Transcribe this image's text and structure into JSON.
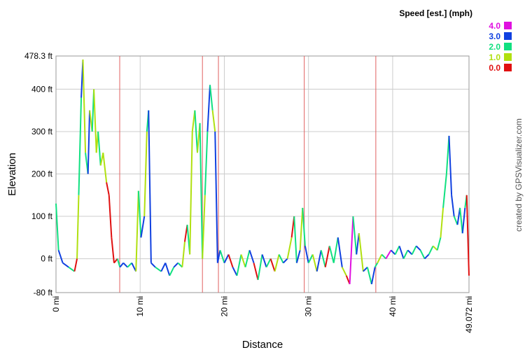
{
  "chart_data": {
    "type": "line",
    "xlabel": "Distance",
    "ylabel": "Elevation",
    "credit": "created by GPSVisualizer.com",
    "legend_title": "Speed [est.] (mph)",
    "legend": [
      {
        "value": 4,
        "label": "4.0",
        "color": "#e010e0"
      },
      {
        "value": 3,
        "label": "3.0",
        "color": "#1040e0"
      },
      {
        "value": 2,
        "label": "2.0",
        "color": "#10e080"
      },
      {
        "value": 1,
        "label": "1.0",
        "color": "#b0e010"
      },
      {
        "value": 0,
        "label": "0.0",
        "color": "#e01010"
      }
    ],
    "xlim": [
      0,
      49.072
    ],
    "ylim": [
      -80,
      478.3
    ],
    "xticks": [
      {
        "value": 0,
        "label": "0 mi"
      },
      {
        "value": 10,
        "label": "10 mi"
      },
      {
        "value": 20,
        "label": "20 mi"
      },
      {
        "value": 30,
        "label": "30 mi"
      },
      {
        "value": 40,
        "label": "40 mi"
      },
      {
        "value": 49.072,
        "label": "49.072 mi"
      }
    ],
    "yticks": [
      {
        "value": -80,
        "label": "-80 ft"
      },
      {
        "value": 0,
        "label": "0 ft"
      },
      {
        "value": 100,
        "label": "100 ft"
      },
      {
        "value": 200,
        "label": "200 ft"
      },
      {
        "value": 300,
        "label": "300 ft"
      },
      {
        "value": 400,
        "label": "400 ft"
      },
      {
        "value": 478.3,
        "label": "478.3 ft"
      }
    ],
    "grid": true,
    "marker_color": "#e06060",
    "markers": [
      7.57,
      17.4,
      19.3,
      29.5,
      38.0
    ],
    "x": [
      0,
      0.3,
      0.8,
      1.5,
      2.2,
      2.5,
      2.7,
      3.0,
      3.2,
      3.5,
      3.8,
      4.0,
      4.3,
      4.5,
      4.8,
      5.0,
      5.3,
      5.6,
      6.0,
      6.3,
      6.6,
      6.9,
      7.3,
      7.6,
      8.0,
      8.5,
      9.0,
      9.5,
      9.8,
      10.1,
      10.5,
      10.8,
      11.0,
      11.3,
      11.8,
      12.5,
      13.0,
      13.5,
      14.0,
      14.5,
      15.0,
      15.3,
      15.6,
      15.9,
      16.2,
      16.5,
      16.8,
      17.1,
      17.4,
      17.7,
      18.0,
      18.3,
      18.6,
      18.9,
      19.2,
      19.5,
      20.0,
      20.5,
      21.0,
      21.5,
      22.0,
      22.5,
      23.0,
      23.5,
      24.0,
      24.5,
      25.0,
      25.5,
      26.0,
      26.5,
      27.0,
      27.5,
      28.0,
      28.3,
      28.6,
      29.0,
      29.3,
      29.6,
      30.0,
      30.5,
      31.0,
      31.5,
      32.0,
      32.5,
      33.0,
      33.5,
      34.0,
      34.5,
      34.9,
      35.3,
      35.7,
      36.0,
      36.5,
      37.0,
      37.5,
      37.9,
      38.2,
      38.7,
      39.2,
      39.8,
      40.3,
      40.8,
      41.3,
      41.8,
      42.3,
      42.8,
      43.3,
      43.8,
      44.3,
      44.8,
      45.3,
      45.7,
      46.0,
      46.4,
      46.7,
      47.0,
      47.3,
      47.7,
      48.0,
      48.3,
      48.6,
      48.8,
      49.072
    ],
    "values": [
      130,
      20,
      -10,
      -20,
      -30,
      0,
      150,
      380,
      470,
      250,
      200,
      350,
      300,
      400,
      250,
      300,
      220,
      250,
      180,
      150,
      50,
      -10,
      0,
      -20,
      -10,
      -20,
      -10,
      -30,
      160,
      50,
      100,
      300,
      350,
      -10,
      -20,
      -30,
      -10,
      -40,
      -20,
      -10,
      -20,
      40,
      80,
      10,
      300,
      350,
      250,
      320,
      0,
      150,
      300,
      410,
      350,
      300,
      -10,
      20,
      -10,
      10,
      -20,
      -40,
      10,
      -20,
      20,
      -10,
      -50,
      10,
      -20,
      0,
      -30,
      10,
      -10,
      0,
      50,
      100,
      -10,
      20,
      120,
      30,
      -10,
      10,
      -30,
      20,
      -20,
      30,
      -10,
      50,
      -20,
      -40,
      -60,
      100,
      10,
      60,
      -30,
      -20,
      -60,
      -20,
      -10,
      10,
      0,
      20,
      10,
      30,
      0,
      20,
      10,
      30,
      20,
      0,
      10,
      30,
      20,
      50,
      120,
      200,
      290,
      150,
      100,
      80,
      120,
      60,
      120,
      150,
      -40
    ],
    "speed": [
      3,
      2,
      3,
      3,
      2,
      0,
      1,
      2,
      3,
      1,
      2,
      3,
      1,
      2,
      1,
      1,
      2,
      1,
      1,
      0,
      0,
      0,
      0,
      2,
      3,
      3,
      2,
      3,
      1,
      2,
      3,
      1,
      2,
      3,
      3,
      2,
      3,
      3,
      2,
      3,
      2,
      1,
      0,
      2,
      1,
      1,
      2,
      1,
      2,
      1,
      2,
      3,
      2,
      1,
      3,
      3,
      2,
      3,
      0,
      3,
      2,
      1,
      2,
      3,
      0,
      2,
      3,
      2,
      0,
      1,
      2,
      3,
      1,
      0,
      2,
      3,
      1,
      2,
      3,
      2,
      1,
      3,
      2,
      0,
      2,
      2,
      3,
      1,
      0,
      4,
      2,
      3,
      1,
      3,
      2,
      3,
      2,
      1,
      2,
      4,
      3,
      2,
      3,
      2,
      3,
      2,
      3,
      2,
      3,
      2,
      1,
      2,
      1,
      2,
      2,
      3,
      3,
      2,
      3,
      2,
      3,
      2,
      0
    ]
  }
}
